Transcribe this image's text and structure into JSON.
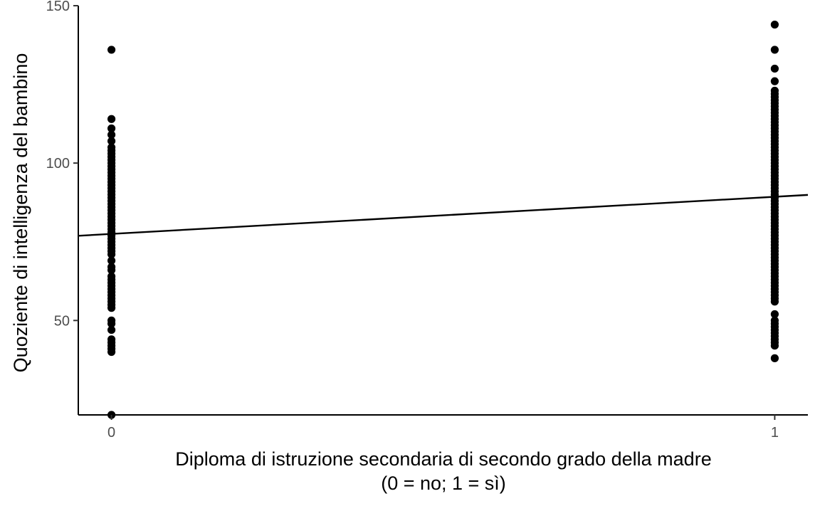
{
  "chart_data": {
    "type": "scatter",
    "title": "",
    "xlabel_lines": [
      "Diploma di istruzione secondaria di secondo grado della madre",
      "(0 = no; 1 = sì)"
    ],
    "ylabel": "Quoziente di intelligenza del bambino",
    "xlim": [
      -0.05,
      1.05
    ],
    "ylim": [
      20,
      150
    ],
    "x_ticks": [
      0,
      1
    ],
    "x_tick_labels": [
      "0",
      "1"
    ],
    "y_ticks": [
      50,
      100,
      150
    ],
    "y_tick_labels": [
      "50",
      "100",
      "150"
    ],
    "grid": false,
    "legend": "none",
    "regression_line": {
      "intercept": 77.5,
      "slope": 11.8
    },
    "series": [
      {
        "x": 0,
        "y": [
          136,
          114,
          111,
          109,
          107,
          105,
          104,
          103,
          102,
          101,
          100,
          99,
          98,
          97,
          96,
          95,
          94,
          93,
          92,
          91,
          90,
          89,
          88,
          87,
          86,
          85,
          84,
          83,
          82,
          81,
          80,
          79,
          78,
          77,
          76,
          75,
          74,
          73,
          72,
          71,
          69,
          67,
          66,
          64,
          63,
          62,
          61,
          60,
          59,
          58,
          57,
          56,
          55,
          54,
          50,
          49,
          47,
          44,
          43,
          42,
          41,
          40,
          20
        ]
      },
      {
        "x": 1,
        "y": [
          144,
          136,
          130,
          126,
          123,
          122,
          121,
          120,
          119,
          118,
          117,
          116,
          115,
          114,
          113,
          112,
          111,
          110,
          109,
          108,
          107,
          106,
          105,
          104,
          103,
          102,
          101,
          100,
          99,
          98,
          97,
          96,
          95,
          94,
          93,
          92,
          91,
          90,
          89,
          88,
          87,
          86,
          85,
          84,
          83,
          82,
          81,
          80,
          79,
          78,
          77,
          76,
          75,
          74,
          73,
          72,
          71,
          70,
          69,
          68,
          67,
          66,
          65,
          64,
          63,
          62,
          61,
          60,
          59,
          58,
          57,
          56,
          52,
          50,
          49,
          48,
          47,
          46,
          45,
          44,
          43,
          42,
          38
        ]
      }
    ]
  }
}
